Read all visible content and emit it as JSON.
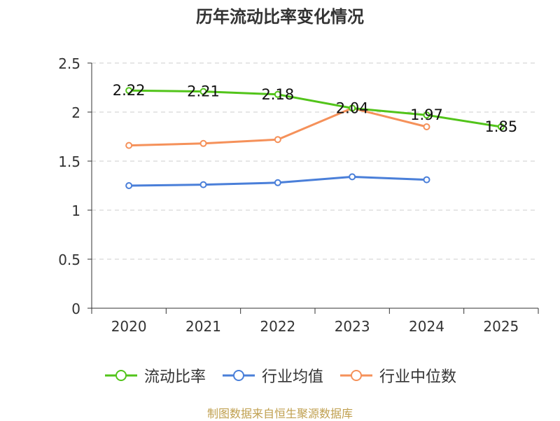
{
  "chart_data": {
    "type": "line",
    "title": "历年流动比率变化情况",
    "categories": [
      "2020",
      "2021",
      "2022",
      "2023",
      "2024",
      "2025"
    ],
    "ylim": [
      0,
      2.5
    ],
    "yticks": [
      0,
      0.5,
      1,
      1.5,
      2,
      2.5
    ],
    "ytick_labels": [
      "0",
      "0.5",
      "1",
      "1.5",
      "2",
      "2.5"
    ],
    "grid": true,
    "legend_position": "bottom",
    "series": [
      {
        "name": "流动比率",
        "color": "#52c41a",
        "values": [
          2.22,
          2.21,
          2.18,
          2.04,
          1.97,
          1.85
        ],
        "labels": [
          "2.22",
          "2.21",
          "2.18",
          "2.04",
          "1.97",
          "1.85"
        ],
        "show_labels": true
      },
      {
        "name": "行业均值",
        "color": "#4a7fd9",
        "values": [
          1.25,
          1.26,
          1.28,
          1.34,
          1.31,
          null
        ],
        "show_labels": false
      },
      {
        "name": "行业中位数",
        "color": "#f5915a",
        "values": [
          1.66,
          1.68,
          1.72,
          2.04,
          1.85,
          null
        ],
        "show_labels": false
      }
    ]
  },
  "footer": "制图数据来自恒生聚源数据库"
}
